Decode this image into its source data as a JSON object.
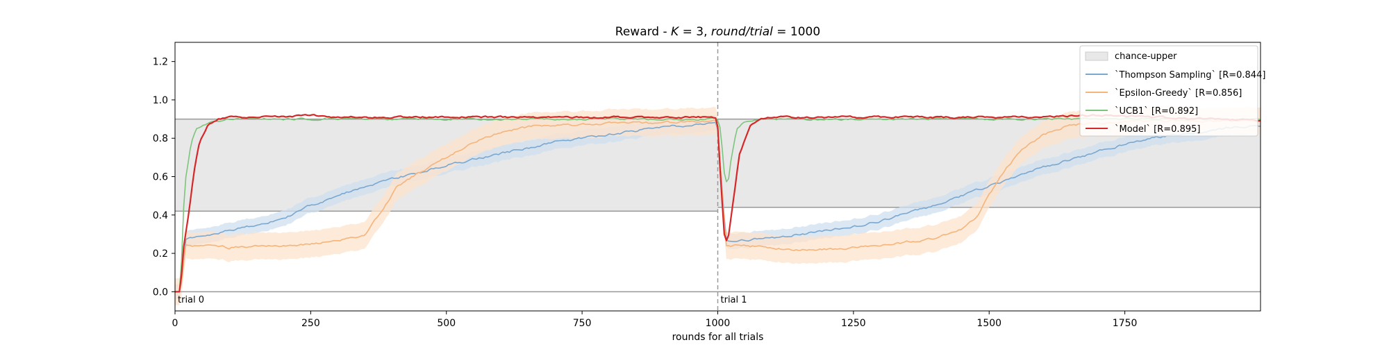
{
  "chart_data": {
    "type": "line",
    "title": "Reward - K = 3, round/trial = 1000",
    "title_parts": {
      "prefix": "Reward - ",
      "k_var": "K",
      "k_eq": " = 3, ",
      "rt_var": "round/trial",
      "rt_eq": " = 1000"
    },
    "xlabel": "rounds for all trials",
    "ylabel": "",
    "xlim": [
      0,
      2000
    ],
    "ylim": [
      -0.1,
      1.3
    ],
    "x_ticks": [
      0,
      250,
      500,
      750,
      1000,
      1250,
      1500,
      1750
    ],
    "y_ticks": [
      0.0,
      0.2,
      0.4,
      0.6,
      0.8,
      1.0,
      1.2
    ],
    "y_tick_labels": [
      "0.0",
      "0.2",
      "0.4",
      "0.6",
      "0.8",
      "1.0",
      "1.2"
    ],
    "grid": false,
    "legend_position": "top-right",
    "trial_boundaries": [
      {
        "x": 0,
        "label": "trial 0"
      },
      {
        "x": 1000,
        "label": "trial 1"
      }
    ],
    "hline": 0.0,
    "chance_band": {
      "name": "chance-upper",
      "color": "#e8e8e8",
      "segments": [
        {
          "x": [
            0,
            1000
          ],
          "lower": 0.42,
          "upper": 0.9
        },
        {
          "x": [
            1000,
            2000
          ],
          "lower": 0.44,
          "upper": 0.9
        }
      ]
    },
    "series": [
      {
        "name": "`Thompson Sampling`",
        "legend_suffix": "[R=0.844]",
        "color": "#7aa7d0",
        "band_color": "#cfe0ef",
        "points": [
          [
            0,
            0.0
          ],
          [
            10,
            0.0
          ],
          [
            20,
            0.27
          ],
          [
            50,
            0.29
          ],
          [
            100,
            0.32
          ],
          [
            150,
            0.35
          ],
          [
            200,
            0.38
          ],
          [
            250,
            0.45
          ],
          [
            300,
            0.5
          ],
          [
            350,
            0.55
          ],
          [
            400,
            0.59
          ],
          [
            450,
            0.62
          ],
          [
            500,
            0.66
          ],
          [
            550,
            0.69
          ],
          [
            600,
            0.72
          ],
          [
            650,
            0.75
          ],
          [
            700,
            0.78
          ],
          [
            750,
            0.8
          ],
          [
            800,
            0.82
          ],
          [
            850,
            0.84
          ],
          [
            900,
            0.86
          ],
          [
            950,
            0.87
          ],
          [
            999,
            0.88
          ],
          [
            1015,
            0.27
          ],
          [
            1050,
            0.27
          ],
          [
            1100,
            0.28
          ],
          [
            1150,
            0.3
          ],
          [
            1200,
            0.32
          ],
          [
            1250,
            0.34
          ],
          [
            1300,
            0.37
          ],
          [
            1350,
            0.41
          ],
          [
            1400,
            0.45
          ],
          [
            1450,
            0.5
          ],
          [
            1500,
            0.55
          ],
          [
            1550,
            0.6
          ],
          [
            1600,
            0.65
          ],
          [
            1650,
            0.69
          ],
          [
            1700,
            0.73
          ],
          [
            1750,
            0.77
          ],
          [
            1800,
            0.8
          ],
          [
            1850,
            0.82
          ],
          [
            1900,
            0.84
          ],
          [
            1950,
            0.86
          ],
          [
            2000,
            0.87
          ]
        ],
        "band_width": 0.04
      },
      {
        "name": "`Epsilon-Greedy`",
        "legend_suffix": "[R=0.856]",
        "color": "#f5b47a",
        "band_color": "#fde3cc",
        "points": [
          [
            0,
            0.0
          ],
          [
            10,
            0.0
          ],
          [
            20,
            0.24
          ],
          [
            50,
            0.24
          ],
          [
            100,
            0.23
          ],
          [
            150,
            0.24
          ],
          [
            200,
            0.24
          ],
          [
            250,
            0.25
          ],
          [
            300,
            0.26
          ],
          [
            350,
            0.3
          ],
          [
            380,
            0.42
          ],
          [
            410,
            0.55
          ],
          [
            450,
            0.62
          ],
          [
            500,
            0.7
          ],
          [
            550,
            0.78
          ],
          [
            600,
            0.83
          ],
          [
            650,
            0.86
          ],
          [
            700,
            0.87
          ],
          [
            750,
            0.87
          ],
          [
            800,
            0.88
          ],
          [
            900,
            0.88
          ],
          [
            999,
            0.89
          ],
          [
            1015,
            0.24
          ],
          [
            1050,
            0.24
          ],
          [
            1100,
            0.23
          ],
          [
            1150,
            0.22
          ],
          [
            1200,
            0.22
          ],
          [
            1250,
            0.23
          ],
          [
            1300,
            0.24
          ],
          [
            1350,
            0.26
          ],
          [
            1400,
            0.28
          ],
          [
            1450,
            0.33
          ],
          [
            1480,
            0.4
          ],
          [
            1500,
            0.5
          ],
          [
            1530,
            0.64
          ],
          [
            1560,
            0.74
          ],
          [
            1600,
            0.82
          ],
          [
            1650,
            0.87
          ],
          [
            1700,
            0.88
          ],
          [
            1800,
            0.89
          ],
          [
            1900,
            0.89
          ],
          [
            2000,
            0.89
          ]
        ],
        "band_width": 0.07
      },
      {
        "name": "`UCB1`",
        "legend_suffix": "[R=0.892]",
        "color": "#7cc47c",
        "points": [
          [
            0,
            0.0
          ],
          [
            10,
            0.0
          ],
          [
            15,
            0.4
          ],
          [
            20,
            0.6
          ],
          [
            30,
            0.78
          ],
          [
            40,
            0.85
          ],
          [
            60,
            0.88
          ],
          [
            100,
            0.9
          ],
          [
            200,
            0.9
          ],
          [
            300,
            0.9
          ],
          [
            400,
            0.9
          ],
          [
            500,
            0.9
          ],
          [
            600,
            0.9
          ],
          [
            700,
            0.9
          ],
          [
            800,
            0.9
          ],
          [
            900,
            0.9
          ],
          [
            999,
            0.9
          ],
          [
            1005,
            0.85
          ],
          [
            1012,
            0.62
          ],
          [
            1018,
            0.55
          ],
          [
            1025,
            0.7
          ],
          [
            1035,
            0.85
          ],
          [
            1050,
            0.89
          ],
          [
            1100,
            0.9
          ],
          [
            1200,
            0.9
          ],
          [
            1300,
            0.9
          ],
          [
            1400,
            0.9
          ],
          [
            1500,
            0.9
          ],
          [
            1600,
            0.9
          ],
          [
            1700,
            0.9
          ],
          [
            1800,
            0.9
          ],
          [
            1900,
            0.9
          ],
          [
            2000,
            0.9
          ]
        ]
      },
      {
        "name": "`Model`",
        "legend_suffix": "[R=0.895]",
        "color": "#d62728",
        "points": [
          [
            0,
            0.0
          ],
          [
            10,
            0.0
          ],
          [
            15,
            0.22
          ],
          [
            25,
            0.4
          ],
          [
            35,
            0.62
          ],
          [
            45,
            0.78
          ],
          [
            60,
            0.87
          ],
          [
            80,
            0.9
          ],
          [
            100,
            0.91
          ],
          [
            150,
            0.91
          ],
          [
            200,
            0.91
          ],
          [
            250,
            0.92
          ],
          [
            300,
            0.91
          ],
          [
            350,
            0.91
          ],
          [
            400,
            0.91
          ],
          [
            500,
            0.91
          ],
          [
            600,
            0.91
          ],
          [
            700,
            0.91
          ],
          [
            800,
            0.91
          ],
          [
            900,
            0.91
          ],
          [
            999,
            0.91
          ],
          [
            1005,
            0.6
          ],
          [
            1012,
            0.3
          ],
          [
            1018,
            0.25
          ],
          [
            1025,
            0.4
          ],
          [
            1040,
            0.72
          ],
          [
            1060,
            0.87
          ],
          [
            1080,
            0.9
          ],
          [
            1100,
            0.91
          ],
          [
            1200,
            0.91
          ],
          [
            1300,
            0.91
          ],
          [
            1400,
            0.91
          ],
          [
            1500,
            0.91
          ],
          [
            1600,
            0.91
          ],
          [
            1700,
            0.92
          ],
          [
            1800,
            0.91
          ],
          [
            1900,
            0.9
          ],
          [
            2000,
            0.89
          ]
        ]
      }
    ]
  }
}
